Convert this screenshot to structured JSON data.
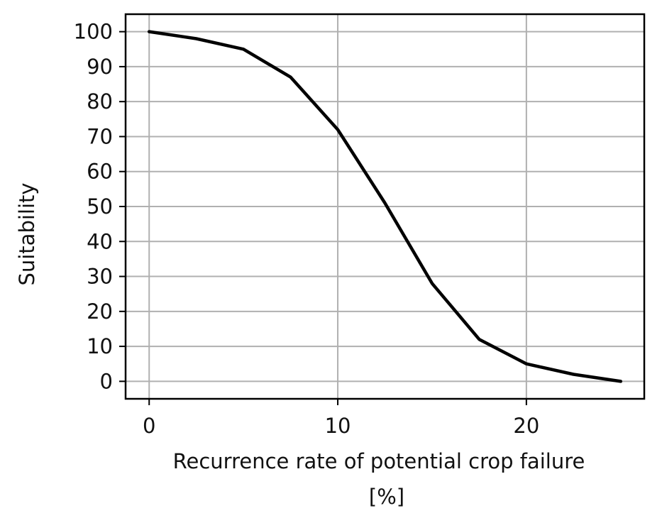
{
  "chart_data": {
    "type": "line",
    "title": "",
    "xlabel_lines": [
      "Recurrence rate of potential crop failure",
      "[%]"
    ],
    "ylabel": "Suitability",
    "xlim": [
      -1.25,
      26.25
    ],
    "ylim": [
      -5,
      105
    ],
    "xticks": [
      0,
      10,
      20
    ],
    "yticks": [
      0,
      10,
      20,
      30,
      40,
      50,
      60,
      70,
      80,
      90,
      100
    ],
    "grid": true,
    "series": [
      {
        "color": "#000000",
        "x": [
          0,
          2.5,
          5,
          7.5,
          10,
          12.5,
          15,
          17.5,
          20,
          22.5,
          25
        ],
        "y": [
          100,
          98,
          95,
          87,
          72,
          51,
          28,
          12,
          5,
          2,
          0
        ]
      }
    ]
  },
  "colors": {
    "line": "#000000",
    "grid": "#b0b0b0",
    "frame": "#000000"
  }
}
